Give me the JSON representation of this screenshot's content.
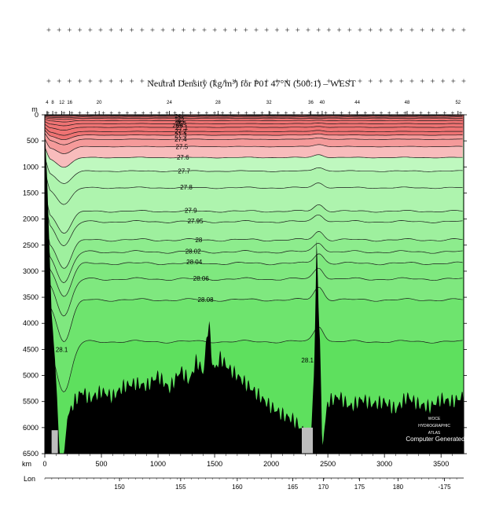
{
  "chart_data": {
    "type": "heatmap",
    "title": "Neutral Density (kg/m³) for P01 47°N (500:1) – WEST",
    "y_axis": {
      "unit": "m",
      "range": [
        0,
        6500
      ],
      "ticks": [
        0,
        500,
        1000,
        1500,
        2000,
        2500,
        3000,
        3500,
        4000,
        4500,
        5000,
        5500,
        6000,
        6500
      ]
    },
    "x_axis": {
      "unit": "km",
      "range": [
        0,
        3700
      ],
      "ticks": [
        0,
        500,
        1000,
        1500,
        2000,
        2500,
        3000,
        3500
      ]
    },
    "lon_axis": {
      "label": "Lon",
      "ticks": [
        "150",
        "155",
        "160",
        "165",
        "170",
        "175",
        "180",
        "-175"
      ],
      "tick_km": [
        660,
        1200,
        1700,
        2190,
        2460,
        2780,
        3120,
        3530
      ]
    },
    "station_labels": [
      "4",
      "8",
      "12",
      "16",
      "20",
      "24",
      "28",
      "32",
      "36",
      "40",
      "44",
      "48",
      "52"
    ],
    "station_km": [
      20,
      70,
      150,
      220,
      480,
      1100,
      1530,
      1980,
      2350,
      2450,
      2760,
      3200,
      3650
    ],
    "contour_levels": [
      "24",
      "25",
      "26",
      "26.5",
      "26.8",
      "27",
      "27.1",
      "27.2",
      "27.3",
      "27.4",
      "27.5",
      "27.6",
      "27.7",
      "27.8",
      "27.9",
      "27.95",
      "28",
      "28.02",
      "28.04",
      "28.06",
      "28.08",
      "28.1"
    ],
    "contour_depths": [
      {
        "level": "24",
        "depth": 10
      },
      {
        "level": "25",
        "depth": 25
      },
      {
        "level": "26",
        "depth": 45
      },
      {
        "level": "26.5",
        "depth": 70
      },
      {
        "level": "26.8",
        "depth": 110
      },
      {
        "level": "27",
        "depth": 170
      },
      {
        "level": "27.1",
        "depth": 240
      },
      {
        "level": "27.2",
        "depth": 320
      },
      {
        "level": "27.3",
        "depth": 390
      },
      {
        "level": "27.4",
        "depth": 470
      },
      {
        "level": "27.5",
        "depth": 610
      },
      {
        "level": "27.6",
        "depth": 820
      },
      {
        "level": "27.7",
        "depth": 1080
      },
      {
        "level": "27.8",
        "depth": 1400
      },
      {
        "level": "27.9",
        "depth": 1850
      },
      {
        "level": "27.95",
        "depth": 2050
      },
      {
        "level": "28",
        "depth": 2400
      },
      {
        "level": "28.02",
        "depth": 2630
      },
      {
        "level": "28.04",
        "depth": 2850
      },
      {
        "level": "28.06",
        "depth": 3150
      },
      {
        "level": "28.08",
        "depth": 3550
      },
      {
        "level": "28.1",
        "depth": 4350
      }
    ],
    "bottom_profile": [
      [
        0,
        300
      ],
      [
        20,
        1200
      ],
      [
        40,
        2500
      ],
      [
        60,
        3800
      ],
      [
        90,
        4700
      ],
      [
        110,
        5500
      ],
      [
        130,
        6500
      ],
      [
        170,
        6500
      ],
      [
        200,
        5800
      ],
      [
        260,
        5500
      ],
      [
        330,
        5300
      ],
      [
        400,
        5450
      ],
      [
        500,
        5300
      ],
      [
        600,
        5400
      ],
      [
        700,
        5200
      ],
      [
        800,
        5150
      ],
      [
        900,
        5200
      ],
      [
        1000,
        5000
      ],
      [
        1100,
        5250
      ],
      [
        1200,
        4900
      ],
      [
        1280,
        5100
      ],
      [
        1340,
        4700
      ],
      [
        1400,
        4950
      ],
      [
        1450,
        3900
      ],
      [
        1470,
        4600
      ],
      [
        1500,
        4900
      ],
      [
        1550,
        4650
      ],
      [
        1620,
        4850
      ],
      [
        1700,
        5000
      ],
      [
        1800,
        5200
      ],
      [
        1900,
        5400
      ],
      [
        2000,
        5600
      ],
      [
        2100,
        5750
      ],
      [
        2200,
        5850
      ],
      [
        2300,
        6100
      ],
      [
        2350,
        6300
      ],
      [
        2380,
        4800
      ],
      [
        2400,
        2500
      ],
      [
        2430,
        4300
      ],
      [
        2450,
        6350
      ],
      [
        2500,
        5500
      ],
      [
        2600,
        5400
      ],
      [
        2700,
        5600
      ],
      [
        2800,
        5450
      ],
      [
        2900,
        5550
      ],
      [
        3000,
        5500
      ],
      [
        3100,
        5650
      ],
      [
        3200,
        5400
      ],
      [
        3300,
        5550
      ],
      [
        3400,
        5600
      ],
      [
        3500,
        5450
      ],
      [
        3600,
        5500
      ],
      [
        3700,
        5400
      ]
    ],
    "watermark": [
      "WOCE",
      "HYDROGRAPHIC",
      "ATLAS"
    ],
    "annotation": "Computer Generated",
    "colors": {
      "surface_red": "#ef7373",
      "mid_red": "#f59a9a",
      "light_red": "#f8bcbc",
      "pale_green": "#bff8bf",
      "light_green": "#aef4ae",
      "mid_green": "#9ef09e",
      "green": "#8dec8d",
      "deep_green": "#7fe87f",
      "bright_green": "#6ee46e",
      "bottom_green": "#5ee05e",
      "topography": "#000000"
    }
  }
}
